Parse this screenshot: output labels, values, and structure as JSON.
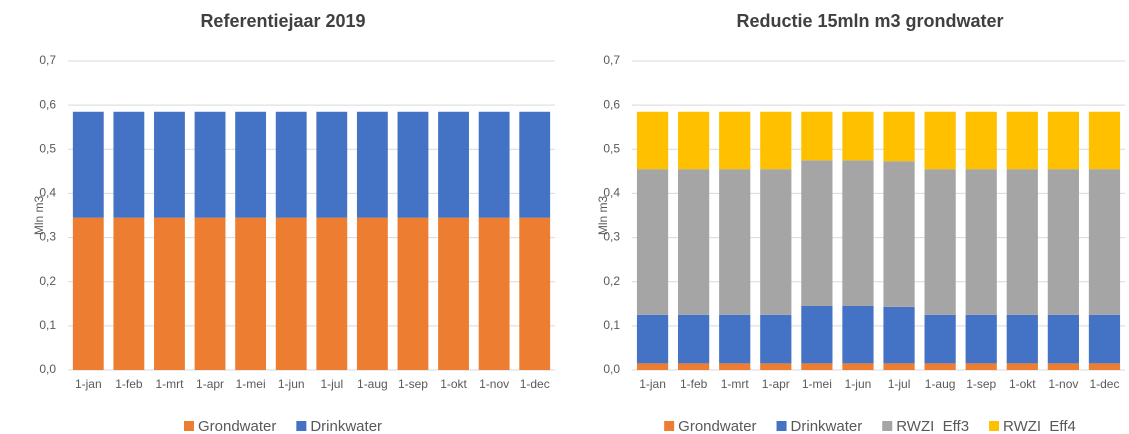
{
  "chart_data": [
    {
      "type": "bar",
      "stacked": true,
      "title": "Referentiejaar 2019",
      "y_label": "Mln m3",
      "categories": [
        "1-jan",
        "1-feb",
        "1-mrt",
        "1-apr",
        "1-mei",
        "1-jun",
        "1-jul",
        "1-aug",
        "1-sep",
        "1-okt",
        "1-nov",
        "1-dec"
      ],
      "series": [
        {
          "name": "Grondwater",
          "color": "#ed7d31",
          "values": [
            0.345,
            0.345,
            0.345,
            0.345,
            0.345,
            0.345,
            0.345,
            0.345,
            0.345,
            0.345,
            0.345,
            0.345
          ]
        },
        {
          "name": "Drinkwater",
          "color": "#4472c4",
          "values": [
            0.24,
            0.24,
            0.24,
            0.24,
            0.24,
            0.24,
            0.24,
            0.24,
            0.24,
            0.24,
            0.24,
            0.24
          ]
        }
      ],
      "ylim": [
        0,
        0.7
      ],
      "yticks": [
        {
          "value": 0,
          "label": "0,0"
        },
        {
          "value": 0.1,
          "label": "0,1"
        },
        {
          "value": 0.2,
          "label": "0,2"
        },
        {
          "value": 0.3,
          "label": "0,3"
        },
        {
          "value": 0.4,
          "label": "0,4"
        },
        {
          "value": 0.5,
          "label": "0,5"
        },
        {
          "value": 0.6,
          "label": "0,6"
        },
        {
          "value": 0.7,
          "label": "0,7"
        }
      ],
      "grid": true,
      "legend": "bottom"
    },
    {
      "type": "bar",
      "stacked": true,
      "title": "Reductie 15mln m3 grondwater",
      "y_label": "Mln m3",
      "categories": [
        "1-jan",
        "1-feb",
        "1-mrt",
        "1-apr",
        "1-mei",
        "1-jun",
        "1-jul",
        "1-aug",
        "1-sep",
        "1-okt",
        "1-nov",
        "1-dec"
      ],
      "series": [
        {
          "name": "Grondwater",
          "color": "#ed7d31",
          "values": [
            0.015,
            0.015,
            0.015,
            0.015,
            0.015,
            0.015,
            0.015,
            0.015,
            0.015,
            0.015,
            0.015,
            0.015
          ]
        },
        {
          "name": "Drinkwater",
          "color": "#4472c4",
          "values": [
            0.11,
            0.11,
            0.11,
            0.11,
            0.13,
            0.13,
            0.128,
            0.11,
            0.11,
            0.11,
            0.11,
            0.11
          ]
        },
        {
          "name": "RWZI  Eff3",
          "color": "#a5a5a5",
          "values": [
            0.33,
            0.33,
            0.33,
            0.33,
            0.33,
            0.33,
            0.33,
            0.33,
            0.33,
            0.33,
            0.33,
            0.33
          ]
        },
        {
          "name": "RWZI  Eff4",
          "color": "#ffc000",
          "values": [
            0.13,
            0.13,
            0.13,
            0.13,
            0.11,
            0.11,
            0.112,
            0.13,
            0.13,
            0.13,
            0.13,
            0.13
          ]
        }
      ],
      "ylim": [
        0,
        0.7
      ],
      "yticks": [
        {
          "value": 0,
          "label": "0,0"
        },
        {
          "value": 0.1,
          "label": "0,1"
        },
        {
          "value": 0.2,
          "label": "0,2"
        },
        {
          "value": 0.3,
          "label": "0,3"
        },
        {
          "value": 0.4,
          "label": "0,4"
        },
        {
          "value": 0.5,
          "label": "0,5"
        },
        {
          "value": 0.6,
          "label": "0,6"
        },
        {
          "value": 0.7,
          "label": "0,7"
        }
      ],
      "grid": true,
      "legend": "bottom"
    }
  ]
}
